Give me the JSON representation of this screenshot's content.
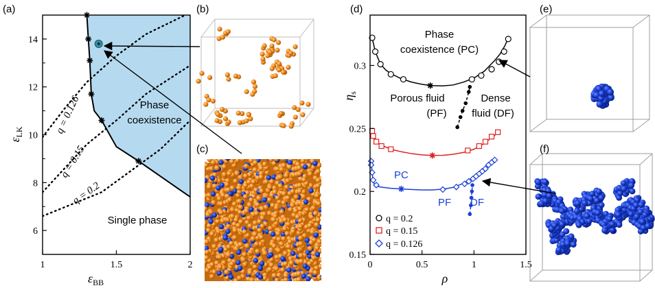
{
  "panel_labels": {
    "a": "(a)",
    "b": "(b)",
    "c": "(c)",
    "d": "(d)",
    "e": "(e)",
    "f": "(f)"
  },
  "colors": {
    "region": "#b5daf0",
    "orange": "#f08c1e",
    "blue": "#1a3fd6",
    "red": "#e02020",
    "black": "#000000"
  },
  "chart_data": [
    {
      "type": "line",
      "panel": "a",
      "xlabel": "εBB",
      "ylabel": "εLK",
      "xlim": [
        1,
        2
      ],
      "ylim": [
        5,
        15
      ],
      "xticks": [
        "1",
        "1.5",
        "2"
      ],
      "yticks": [
        "6",
        "8",
        "10",
        "12",
        "14"
      ],
      "boundary": {
        "x": [
          1.3,
          1.31,
          1.32,
          1.33,
          1.35,
          1.4,
          1.5,
          1.65,
          2.0
        ],
        "y": [
          15.0,
          14.0,
          13.1,
          11.7,
          11.0,
          10.6,
          9.5,
          8.9,
          7.4
        ]
      },
      "markers": {
        "x": [
          1.3,
          1.31,
          1.32,
          1.33,
          1.4,
          1.65
        ],
        "y": [
          15.0,
          14.0,
          13.1,
          11.7,
          10.6,
          8.9
        ]
      },
      "dotted_series": [
        {
          "name": "q = 0.126",
          "x": [
            1.0,
            1.15,
            1.3,
            1.5,
            1.7,
            1.9,
            2.0
          ],
          "y": [
            9.9,
            11.1,
            12.2,
            13.3,
            14.2,
            14.8,
            15.1
          ]
        },
        {
          "name": "q = 0.15",
          "x": [
            1.0,
            1.15,
            1.3,
            1.5,
            1.7,
            1.9,
            2.0
          ],
          "y": [
            7.6,
            8.6,
            9.6,
            10.6,
            11.7,
            12.5,
            12.9
          ]
        },
        {
          "name": "q = 0.2",
          "x": [
            1.0,
            1.2,
            1.4,
            1.6,
            1.8,
            2.0
          ],
          "y": [
            6.6,
            7.1,
            7.6,
            8.5,
            9.4,
            10.6
          ]
        }
      ],
      "highlight_point": {
        "x": 1.38,
        "y": 13.8
      },
      "region_labels": {
        "phase_line1": "Phase",
        "phase_line2": "coexistence",
        "single": "Single phase"
      }
    },
    {
      "type": "line",
      "panel": "d",
      "xlabel": "ρ",
      "ylabel": "ηs",
      "xlim": [
        0,
        1.5
      ],
      "ylim": [
        0.15,
        0.34
      ],
      "xticks": [
        "0",
        "0.5",
        "1",
        "1.5"
      ],
      "yticks": [
        "0.15",
        "0.2",
        "0.25",
        "0.3"
      ],
      "series": [
        {
          "name": "q = 0.2",
          "color": "#000000",
          "marker": "circle",
          "line_x": [
            0.02,
            0.05,
            0.1,
            0.15,
            0.2,
            0.3,
            0.4,
            0.5,
            0.6,
            0.7,
            0.8,
            0.9,
            1.0,
            1.1,
            1.2,
            1.25,
            1.3,
            1.33
          ],
          "line_y": [
            0.322,
            0.311,
            0.301,
            0.2965,
            0.2935,
            0.2895,
            0.2868,
            0.285,
            0.284,
            0.2838,
            0.2845,
            0.2868,
            0.29,
            0.2955,
            0.304,
            0.309,
            0.316,
            0.322
          ],
          "markers_x": [
            0.02,
            0.05,
            0.1,
            0.2,
            0.32,
            0.98,
            1.07,
            1.17,
            1.24,
            1.29,
            1.33
          ],
          "markers_y": [
            0.322,
            0.311,
            0.301,
            0.293,
            0.289,
            0.289,
            0.292,
            0.297,
            0.303,
            0.311,
            0.321
          ],
          "critical": {
            "x": 0.58,
            "y": 0.284
          }
        },
        {
          "name": "q = 0.15",
          "color": "#e02020",
          "marker": "square",
          "line_x": [
            0.02,
            0.03,
            0.05,
            0.1,
            0.2,
            0.3,
            0.4,
            0.5,
            0.6,
            0.7,
            0.8,
            0.9,
            1.0,
            1.1,
            1.15,
            1.2,
            1.23
          ],
          "line_y": [
            0.248,
            0.244,
            0.2405,
            0.237,
            0.2335,
            0.2315,
            0.23,
            0.229,
            0.2285,
            0.2287,
            0.2295,
            0.231,
            0.2335,
            0.238,
            0.2415,
            0.2445,
            0.247
          ],
          "markers_x": [
            0.02,
            0.03,
            0.06,
            0.11,
            0.2,
            0.94,
            1.05,
            1.11,
            1.17,
            1.23
          ],
          "markers_y": [
            0.248,
            0.244,
            0.2395,
            0.236,
            0.2335,
            0.2325,
            0.236,
            0.2395,
            0.2435,
            0.247
          ],
          "critical": {
            "x": 0.6,
            "y": 0.2285
          }
        },
        {
          "name": "q = 0.126",
          "color": "#1a3fd6",
          "marker": "diamond",
          "line_x": [
            0.01,
            0.02,
            0.03,
            0.05,
            0.1,
            0.2,
            0.3,
            0.4,
            0.5,
            0.6,
            0.7,
            0.8,
            0.9,
            0.95,
            1.0,
            1.05,
            1.1,
            1.15,
            1.2
          ],
          "line_y": [
            0.224,
            0.215,
            0.208,
            0.2045,
            0.2035,
            0.2025,
            0.202,
            0.2015,
            0.2012,
            0.2012,
            0.2018,
            0.2032,
            0.2065,
            0.209,
            0.2115,
            0.2145,
            0.2175,
            0.221,
            0.2245
          ],
          "markers_x": [
            0.01,
            0.01,
            0.02,
            0.03,
            0.06,
            0.7,
            0.83,
            0.91,
            0.95,
            0.99,
            1.02,
            1.05,
            1.08,
            1.11,
            1.14,
            1.17,
            1.2
          ],
          "markers_y": [
            0.224,
            0.221,
            0.215,
            0.209,
            0.205,
            0.2015,
            0.2035,
            0.206,
            0.208,
            0.21,
            0.212,
            0.214,
            0.216,
            0.218,
            0.221,
            0.223,
            0.225
          ],
          "critical": {
            "x": 0.3,
            "y": 0.202
          }
        }
      ],
      "widom_lines": [
        {
          "color": "#000000",
          "x": [
            0.84,
            0.87,
            0.89,
            0.92,
            0.95,
            0.96
          ],
          "y": [
            0.251,
            0.259,
            0.264,
            0.27,
            0.279,
            0.283
          ]
        },
        {
          "color": "#1a3fd6",
          "x": [
            0.96,
            0.97,
            0.975,
            0.98,
            0.985
          ],
          "y": [
            0.182,
            0.189,
            0.195,
            0.2,
            0.205
          ]
        }
      ],
      "labels": {
        "pc_top_line1": "Phase",
        "pc_top_line2": "coexistence (PC)",
        "pf_line1": "Porous fluid",
        "pf_line2": "(PF)",
        "df_line1": "Dense",
        "df_line2": "fluid (DF)",
        "pc_blue": "PC",
        "pf_blue": "PF",
        "df_blue": "DF"
      },
      "legend": [
        "q = 0.2",
        "q = 0.15",
        "q = 0.126"
      ]
    }
  ]
}
